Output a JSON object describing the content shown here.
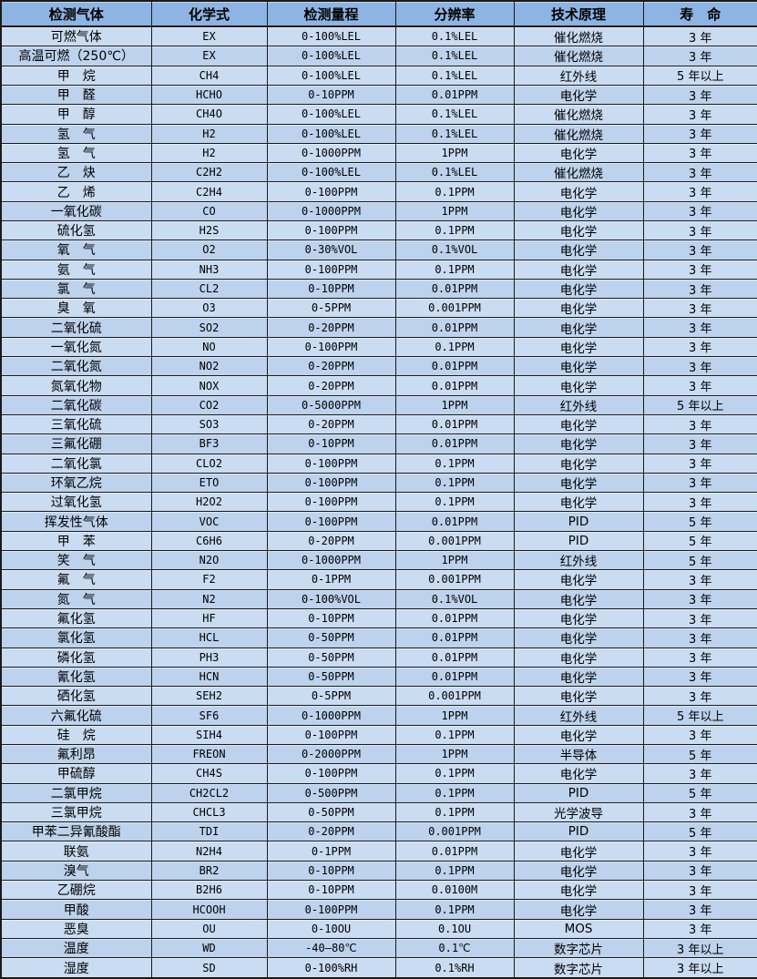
{
  "colors": {
    "header_bg": "#8db4e2",
    "row_light": "#cadcf2",
    "row_dark": "#bdd2ec",
    "grid": "#1a1a1a",
    "text": "#000000"
  },
  "table": {
    "columns": [
      {
        "key": "gas",
        "label": "检测气体"
      },
      {
        "key": "formula",
        "label": "化学式"
      },
      {
        "key": "range",
        "label": "检测量程"
      },
      {
        "key": "resolution",
        "label": "分辨率"
      },
      {
        "key": "principle",
        "label": "技术原理"
      },
      {
        "key": "life",
        "label": "寿　命"
      }
    ],
    "rows": [
      [
        "可燃气体",
        "EX",
        "0-100%LEL",
        "0.1%LEL",
        "催化燃烧",
        "3 年"
      ],
      [
        "高温可燃（250℃）",
        "EX",
        "0-100%LEL",
        "0.1%LEL",
        "催化燃烧",
        "3 年"
      ],
      [
        "甲　烷",
        "CH4",
        "0-100%LEL",
        "0.1%LEL",
        "红外线",
        "5 年以上"
      ],
      [
        "甲　醛",
        "HCHO",
        "0-10PPM",
        "0.01PPM",
        "电化学",
        "3 年"
      ],
      [
        "甲　醇",
        "CH4O",
        "0-100%LEL",
        "0.1%LEL",
        "催化燃烧",
        "3 年"
      ],
      [
        "氢　气",
        "H2",
        "0-100%LEL",
        "0.1%LEL",
        "催化燃烧",
        "3 年"
      ],
      [
        "氢　气",
        "H2",
        "0-1000PPM",
        "1PPM",
        "电化学",
        "3 年"
      ],
      [
        "乙　炔",
        "C2H2",
        "0-100%LEL",
        "0.1%LEL",
        "催化燃烧",
        "3 年"
      ],
      [
        "乙　烯",
        "C2H4",
        "0-100PPM",
        "0.1PPM",
        "电化学",
        "3 年"
      ],
      [
        "一氧化碳",
        "CO",
        "0-1000PPM",
        "1PPM",
        "电化学",
        "3 年"
      ],
      [
        "硫化氢",
        "H2S",
        "0-100PPM",
        "0.1PPM",
        "电化学",
        "3 年"
      ],
      [
        "氧　气",
        "O2",
        "0-30%VOL",
        "0.1%VOL",
        "电化学",
        "3 年"
      ],
      [
        "氨　气",
        "NH3",
        "0-100PPM",
        "0.1PPM",
        "电化学",
        "3 年"
      ],
      [
        "氯　气",
        "CL2",
        "0-10PPM",
        "0.01PPM",
        "电化学",
        "3 年"
      ],
      [
        "臭　氧",
        "O3",
        "0-5PPM",
        "0.001PPM",
        "电化学",
        "3 年"
      ],
      [
        "二氧化硫",
        "SO2",
        "0-20PPM",
        "0.01PPM",
        "电化学",
        "3 年"
      ],
      [
        "一氧化氮",
        "NO",
        "0-100PPM",
        "0.1PPM",
        "电化学",
        "3 年"
      ],
      [
        "二氧化氮",
        "NO2",
        "0-20PPM",
        "0.01PPM",
        "电化学",
        "3 年"
      ],
      [
        "氮氧化物",
        "NOX",
        "0-20PPM",
        "0.01PPM",
        "电化学",
        "3 年"
      ],
      [
        "二氧化碳",
        "CO2",
        "0-5000PPM",
        "1PPM",
        "红外线",
        "5 年以上"
      ],
      [
        "三氧化硫",
        "SO3",
        "0-20PPM",
        "0.01PPM",
        "电化学",
        "3 年"
      ],
      [
        "三氟化硼",
        "BF3",
        "0-10PPM",
        "0.01PPM",
        "电化学",
        "3 年"
      ],
      [
        "二氧化氯",
        "CLO2",
        "0-100PPM",
        "0.1PPM",
        "电化学",
        "3 年"
      ],
      [
        "环氧乙烷",
        "ETO",
        "0-100PPM",
        "0.1PPM",
        "电化学",
        "3 年"
      ],
      [
        "过氧化氢",
        "H2O2",
        "0-100PPM",
        "0.1PPM",
        "电化学",
        "3 年"
      ],
      [
        "挥发性气体",
        "VOC",
        "0-100PPM",
        "0.01PPM",
        "PID",
        "5 年"
      ],
      [
        "甲　苯",
        "C6H6",
        "0-20PPM",
        "0.001PPM",
        "PID",
        "5 年"
      ],
      [
        "笑　气",
        "N2O",
        "0-1000PPM",
        "1PPM",
        "红外线",
        "5 年"
      ],
      [
        "氟　气",
        "F2",
        "0-1PPM",
        "0.001PPM",
        "电化学",
        "3 年"
      ],
      [
        "氮　气",
        "N2",
        "0-100%VOL",
        "0.1%VOL",
        "电化学",
        "3 年"
      ],
      [
        "氟化氢",
        "HF",
        "0-10PPM",
        "0.01PPM",
        "电化学",
        "3 年"
      ],
      [
        "氯化氢",
        "HCL",
        "0-50PPM",
        "0.01PPM",
        "电化学",
        "3 年"
      ],
      [
        "磷化氢",
        "PH3",
        "0-50PPM",
        "0.01PPM",
        "电化学",
        "3 年"
      ],
      [
        "氰化氢",
        "HCN",
        "0-50PPM",
        "0.01PPM",
        "电化学",
        "3 年"
      ],
      [
        "硒化氢",
        "SEH2",
        "0-5PPM",
        "0.001PPM",
        "电化学",
        "3 年"
      ],
      [
        "六氟化硫",
        "SF6",
        "0-1000PPM",
        "1PPM",
        "红外线",
        "5 年以上"
      ],
      [
        "硅　烷",
        "SIH4",
        "0-100PPM",
        "0.1PPM",
        "电化学",
        "3 年"
      ],
      [
        "氟利昂",
        "FREON",
        "0-2000PPM",
        "1PPM",
        "半导体",
        "5 年"
      ],
      [
        "甲硫醇",
        "CH4S",
        "0-100PPM",
        "0.1PPM",
        "电化学",
        "3 年"
      ],
      [
        "二氯甲烷",
        "CH2CL2",
        "0-500PPM",
        "0.1PPM",
        "PID",
        "5 年"
      ],
      [
        "三氯甲烷",
        "CHCL3",
        "0-50PPM",
        "0.1PPM",
        "光学波导",
        "3 年"
      ],
      [
        "甲苯二异氰酸酯",
        "TDI",
        "0-20PPM",
        "0.001PPM",
        "PID",
        "5 年"
      ],
      [
        "联氨",
        "N2H4",
        "0-1PPM",
        "0.01PPM",
        "电化学",
        "3 年"
      ],
      [
        "溴气",
        "BR2",
        "0-10PPM",
        "0.1PPM",
        "电化学",
        "3 年"
      ],
      [
        "乙硼烷",
        "B2H6",
        "0-10PPM",
        "0.0100M",
        "电化学",
        "3 年"
      ],
      [
        "甲酸",
        "HCOOH",
        "0-100PPM",
        "0.1PPM",
        "电化学",
        "3 年"
      ],
      [
        "恶臭",
        "OU",
        "0-10OU",
        "0.1OU",
        "MOS",
        "3 年"
      ],
      [
        "温度",
        "WD",
        "-40—80℃",
        "0.1℃",
        "数字芯片",
        "3 年以上"
      ],
      [
        "湿度",
        "SD",
        "0-100%RH",
        "0.1%RH",
        "数字芯片",
        "3 年以上"
      ]
    ]
  }
}
